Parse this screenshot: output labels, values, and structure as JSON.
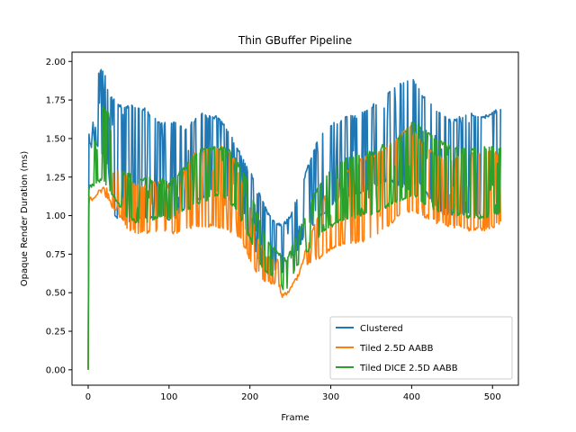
{
  "chart_data": {
    "type": "line",
    "title": "Thin GBuffer Pipeline",
    "xlabel": "Frame",
    "ylabel": "Opaque Render Duration (ms)",
    "xlim": [
      -20,
      532
    ],
    "ylim": [
      -0.1,
      2.06
    ],
    "xticks": [
      0,
      100,
      200,
      300,
      400,
      500
    ],
    "yticks": [
      0.0,
      0.25,
      0.5,
      0.75,
      1.0,
      1.25,
      1.5,
      1.75,
      2.0
    ],
    "ytick_labels": [
      "0.00",
      "0.25",
      "0.50",
      "0.75",
      "1.00",
      "1.25",
      "1.50",
      "1.75",
      "2.00"
    ],
    "legend_position": "lower-right",
    "grid": false,
    "series": [
      {
        "name": "Clustered",
        "color": "#1f77b4",
        "x": [
          0,
          1,
          3,
          5,
          10,
          15,
          20,
          25,
          30,
          40,
          50,
          60,
          70,
          80,
          90,
          100,
          110,
          120,
          130,
          140,
          150,
          160,
          170,
          180,
          190,
          200,
          210,
          220,
          230,
          240,
          250,
          260,
          270,
          280,
          290,
          300,
          310,
          320,
          330,
          340,
          350,
          360,
          370,
          380,
          390,
          400,
          410,
          420,
          430,
          440,
          450,
          460,
          470,
          480,
          490,
          500,
          510
        ],
        "high": [
          0.0,
          1.55,
          1.6,
          1.55,
          1.9,
          1.95,
          1.95,
          1.8,
          1.78,
          1.72,
          1.72,
          1.72,
          1.7,
          1.65,
          1.6,
          1.62,
          1.6,
          1.57,
          1.62,
          1.68,
          1.65,
          1.65,
          1.58,
          1.5,
          1.4,
          1.3,
          1.18,
          1.05,
          0.97,
          0.95,
          1.0,
          1.15,
          1.3,
          1.45,
          1.55,
          1.6,
          1.62,
          1.65,
          1.65,
          1.68,
          1.72,
          1.75,
          1.8,
          1.85,
          1.87,
          1.92,
          1.82,
          1.75,
          1.7,
          1.65,
          1.62,
          1.65,
          1.68,
          1.65,
          1.65,
          1.68,
          1.7
        ],
        "low": [
          0.0,
          1.45,
          1.45,
          1.4,
          1.45,
          1.4,
          1.35,
          1.3,
          1.0,
          0.97,
          0.95,
          0.97,
          0.97,
          0.97,
          0.98,
          0.97,
          0.97,
          1.05,
          1.08,
          1.1,
          1.15,
          1.15,
          1.12,
          1.05,
          0.95,
          0.85,
          0.72,
          0.65,
          0.63,
          0.62,
          0.7,
          0.78,
          0.88,
          0.95,
          1.0,
          1.05,
          1.1,
          1.1,
          1.12,
          1.15,
          1.18,
          1.2,
          1.22,
          1.2,
          1.18,
          1.2,
          1.2,
          1.12,
          1.05,
          1.0,
          1.0,
          1.0,
          1.0,
          1.0,
          1.0,
          1.0,
          1.0
        ]
      },
      {
        "name": "Tiled 2.5D AABB",
        "color": "#ff7f0e",
        "x": [
          0,
          1,
          3,
          5,
          10,
          15,
          20,
          25,
          30,
          40,
          50,
          60,
          70,
          80,
          90,
          100,
          110,
          120,
          130,
          140,
          150,
          160,
          170,
          180,
          190,
          200,
          210,
          220,
          230,
          235,
          238,
          240,
          245,
          250,
          260,
          270,
          280,
          290,
          300,
          310,
          320,
          330,
          340,
          350,
          360,
          370,
          380,
          390,
          400,
          410,
          420,
          430,
          440,
          450,
          460,
          470,
          480,
          490,
          500,
          510
        ],
        "high": [
          0.0,
          1.1,
          1.13,
          1.12,
          1.15,
          1.2,
          1.18,
          1.25,
          1.3,
          1.3,
          1.25,
          1.2,
          1.2,
          1.22,
          1.22,
          1.2,
          1.2,
          1.3,
          1.4,
          1.42,
          1.45,
          1.45,
          1.45,
          1.38,
          1.22,
          1.05,
          0.85,
          0.75,
          0.72,
          0.72,
          0.5,
          0.5,
          0.5,
          0.55,
          0.62,
          0.8,
          0.95,
          1.1,
          1.2,
          1.25,
          1.3,
          1.35,
          1.38,
          1.4,
          1.42,
          1.45,
          1.5,
          1.55,
          1.6,
          1.5,
          1.45,
          1.4,
          1.38,
          1.38,
          1.4,
          1.42,
          1.42,
          1.42,
          1.43,
          1.4
        ],
        "low": [
          0.0,
          1.1,
          1.12,
          1.1,
          1.12,
          1.15,
          1.12,
          1.1,
          1.05,
          0.98,
          0.9,
          0.88,
          0.88,
          0.89,
          0.9,
          0.88,
          0.88,
          0.9,
          0.92,
          0.92,
          0.92,
          0.92,
          0.9,
          0.88,
          0.83,
          0.7,
          0.6,
          0.55,
          0.55,
          0.57,
          0.47,
          0.45,
          0.47,
          0.52,
          0.6,
          0.66,
          0.7,
          0.73,
          0.77,
          0.8,
          0.82,
          0.82,
          0.83,
          0.85,
          0.88,
          0.92,
          0.97,
          1.0,
          1.02,
          1.0,
          0.98,
          0.95,
          0.93,
          0.92,
          0.92,
          0.9,
          0.9,
          0.9,
          0.92,
          0.94
        ]
      },
      {
        "name": "Tiled DICE 2.5D AABB",
        "color": "#2ca02c",
        "x": [
          0,
          1,
          3,
          5,
          10,
          15,
          20,
          25,
          30,
          40,
          50,
          60,
          70,
          80,
          90,
          100,
          110,
          120,
          130,
          140,
          150,
          160,
          170,
          180,
          190,
          200,
          210,
          220,
          230,
          238,
          240,
          245,
          250,
          260,
          270,
          280,
          290,
          300,
          310,
          320,
          330,
          340,
          350,
          360,
          370,
          380,
          390,
          400,
          410,
          420,
          430,
          440,
          450,
          460,
          470,
          480,
          490,
          500,
          510
        ],
        "high": [
          0.0,
          1.58,
          1.5,
          1.52,
          1.5,
          1.75,
          1.7,
          1.68,
          1.5,
          1.3,
          1.28,
          1.25,
          1.25,
          1.25,
          1.25,
          1.22,
          1.28,
          1.32,
          1.4,
          1.45,
          1.45,
          1.45,
          1.45,
          1.4,
          1.3,
          1.2,
          1.0,
          0.85,
          0.8,
          0.75,
          0.75,
          0.72,
          0.78,
          0.9,
          1.0,
          1.15,
          1.25,
          1.3,
          1.35,
          1.38,
          1.4,
          1.42,
          1.42,
          1.45,
          1.48,
          1.5,
          1.55,
          1.62,
          1.58,
          1.55,
          1.5,
          1.48,
          1.45,
          1.45,
          1.45,
          1.45,
          1.45,
          1.45,
          1.45
        ],
        "low": [
          0.0,
          1.15,
          1.18,
          1.18,
          1.2,
          1.22,
          1.2,
          1.15,
          1.12,
          1.05,
          0.97,
          0.95,
          0.95,
          0.97,
          0.98,
          0.97,
          1.0,
          1.02,
          1.05,
          1.08,
          1.1,
          1.12,
          1.1,
          1.05,
          0.95,
          0.85,
          0.7,
          0.62,
          0.6,
          0.6,
          0.5,
          0.5,
          0.58,
          0.68,
          0.75,
          0.82,
          0.88,
          0.92,
          0.95,
          0.97,
          0.98,
          1.0,
          1.0,
          1.02,
          1.05,
          1.08,
          1.1,
          1.12,
          1.1,
          1.05,
          1.02,
          1.0,
          1.0,
          1.0,
          0.98,
          0.98,
          0.98,
          1.0,
          1.0
        ]
      }
    ]
  }
}
